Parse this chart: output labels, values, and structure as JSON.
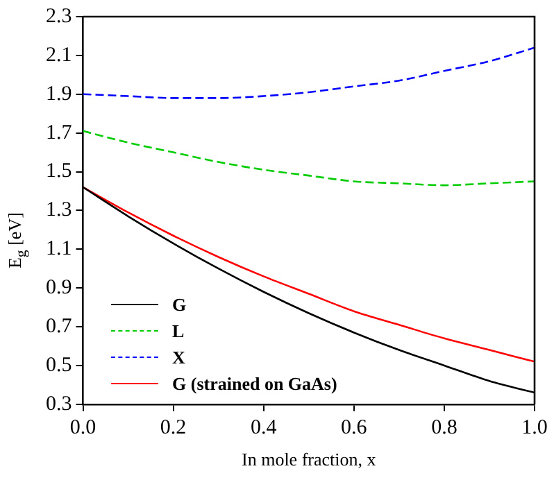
{
  "chart_data": {
    "type": "line",
    "xlabel": "In mole fraction, x",
    "ylabel": "E$_{g}$ [eV]",
    "x": [
      0,
      0.1,
      0.2,
      0.3,
      0.4,
      0.5,
      0.6,
      0.7,
      0.8,
      0.9,
      1.0
    ],
    "series": [
      {
        "name": "G",
        "color": "#000000",
        "line_style": "solid",
        "values": [
          1.42,
          1.27,
          1.13,
          1.0,
          0.88,
          0.77,
          0.67,
          0.58,
          0.5,
          0.42,
          0.36
        ]
      },
      {
        "name": "L",
        "color": "#00cc00",
        "line_style": "dashed",
        "values": [
          1.71,
          1.65,
          1.6,
          1.55,
          1.51,
          1.48,
          1.45,
          1.44,
          1.43,
          1.44,
          1.45
        ]
      },
      {
        "name": "X",
        "color": "#0000ff",
        "line_style": "dashed",
        "values": [
          1.9,
          1.89,
          1.88,
          1.88,
          1.89,
          1.91,
          1.94,
          1.97,
          2.02,
          2.07,
          2.14
        ]
      },
      {
        "name": "G (strained on GaAs)",
        "color": "#ff0000",
        "line_style": "solid",
        "values": [
          1.42,
          1.29,
          1.17,
          1.06,
          0.96,
          0.87,
          0.78,
          0.71,
          0.64,
          0.58,
          0.52
        ]
      }
    ],
    "xlim": [
      0,
      1
    ],
    "xticks": [
      {
        "value": 0,
        "label": "0.0"
      },
      0.2,
      0.4,
      0.6,
      0.8,
      {
        "value": 1,
        "label": "1.0"
      }
    ],
    "ylim": [
      0.3,
      2.3
    ],
    "yticks": [
      0.3,
      0.5,
      0.7,
      0.9,
      1.1,
      1.3,
      1.5,
      1.7,
      1.9,
      2.1,
      2.3
    ],
    "grid": false,
    "legend": "bottom left",
    "marker": "none"
  }
}
